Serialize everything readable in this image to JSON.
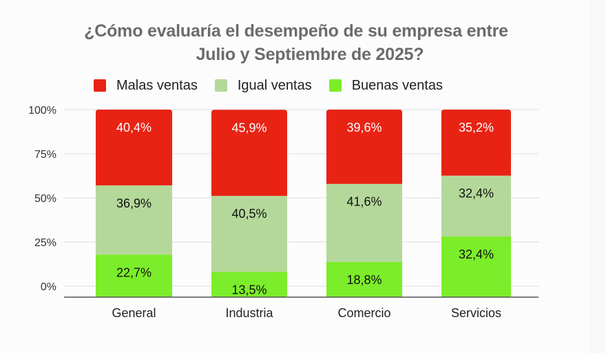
{
  "chart_data": {
    "type": "bar",
    "stacked": true,
    "title": "¿Cómo evaluaría el desempeño de su empresa entre Julio y Septiembre de 2025?",
    "title_lines": [
      "¿Cómo evaluaría el desempeño de su empresa entre",
      "Julio y Septiembre de 2025?"
    ],
    "xlabel": "",
    "ylabel": "",
    "categories": [
      "General",
      "Industria",
      "Comercio",
      "Servicios"
    ],
    "series": [
      {
        "name": "Buenas ventas",
        "color": "#7ced2a",
        "label_color": "#111111",
        "values": [
          22.7,
          13.5,
          18.8,
          32.4
        ],
        "labels": [
          "22,7%",
          "13,5%",
          "18,8%",
          "32,4%"
        ]
      },
      {
        "name": "Igual ventas",
        "color": "#b4d89a",
        "label_color": "#111111",
        "values": [
          36.9,
          40.5,
          41.6,
          32.4
        ],
        "labels": [
          "36,9%",
          "40,5%",
          "41,6%",
          "32,4%"
        ]
      },
      {
        "name": "Malas ventas",
        "color": "#e82314",
        "label_color": "#ffffff",
        "values": [
          40.4,
          45.9,
          39.6,
          35.2
        ],
        "labels": [
          "40,4%",
          "45,9%",
          "39,6%",
          "35,2%"
        ]
      }
    ],
    "legend_order": [
      "Malas ventas",
      "Igual ventas",
      "Buenas ventas"
    ],
    "ylim": [
      0,
      100
    ],
    "yticks": [
      0,
      25,
      50,
      75,
      100
    ],
    "ytick_labels": [
      "0%",
      "25%",
      "50%",
      "75%",
      "100%"
    ],
    "grid": true,
    "legend_position": "top"
  }
}
